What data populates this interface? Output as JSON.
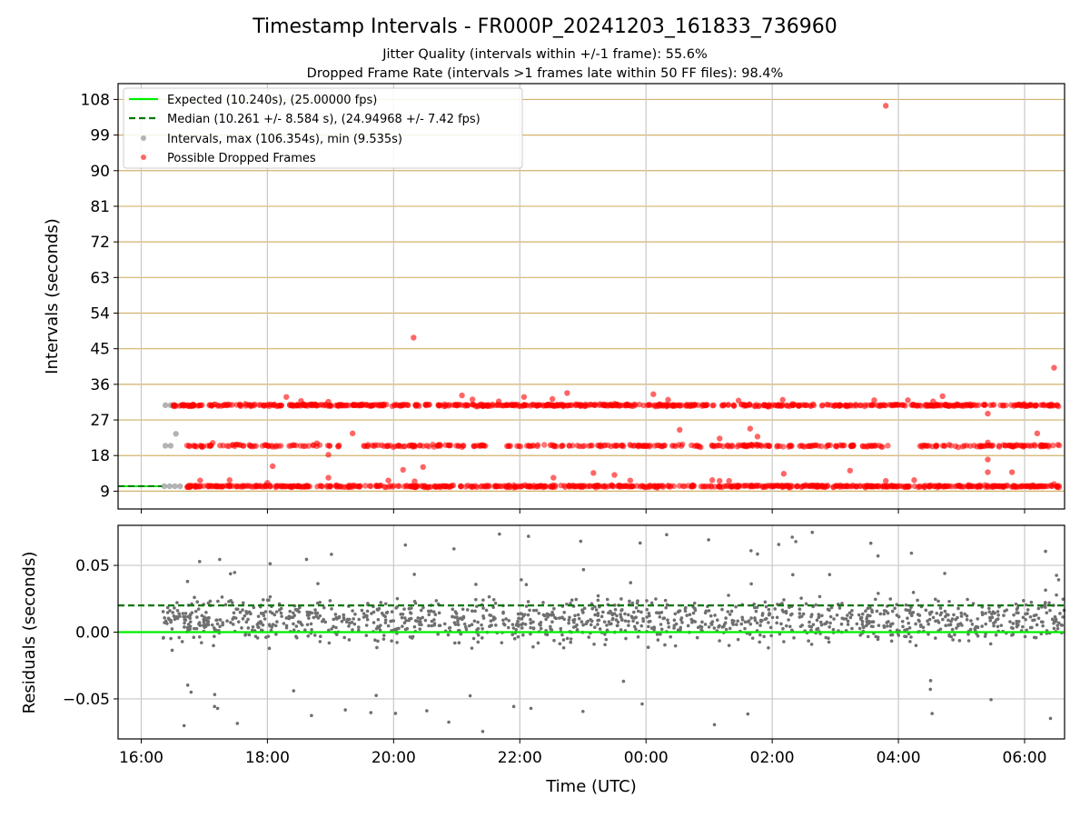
{
  "chart_data": [
    {
      "type": "scatter",
      "title": "Timestamp Intervals - FR000P_20241203_161833_736960",
      "subtitle": [
        "Jitter Quality (intervals within +/-1 frame): 55.6%",
        "Dropped Frame Rate (intervals >1 frames late within 50 FF files): 98.4%"
      ],
      "ylabel": "Intervals (seconds)",
      "ylim": [
        4.5,
        112
      ],
      "yticks": [
        "9",
        "18",
        "27",
        "36",
        "45",
        "54",
        "63",
        "72",
        "81",
        "90",
        "99",
        "108"
      ],
      "grid": true,
      "legend_position": "top-left",
      "legend": [
        "Expected (10.240s), (25.00000 fps)",
        "Median (10.261 +/- 8.584 s), (24.94968 +/- 7.42 fps)",
        "Intervals, max (106.354s), min (9.535s)",
        "Possible Dropped Frames"
      ],
      "expected_interval": 10.24,
      "median_interval": 10.261,
      "bands": [
        {
          "y": 10.24,
          "x_range": [
            "16:42",
            "06:33"
          ]
        },
        {
          "y": 20.48,
          "x_range": [
            "16:42",
            "06:33"
          ]
        },
        {
          "y": 30.72,
          "x_range": [
            "16:30",
            "06:33"
          ]
        }
      ],
      "normal_points": [
        {
          "x": "16:22",
          "y": 10.24
        },
        {
          "x": "16:23",
          "y": 20.48
        },
        {
          "x": "16:23",
          "y": 30.72
        },
        {
          "x": "16:27",
          "y": 10.24
        },
        {
          "x": "16:28",
          "y": 20.48
        },
        {
          "x": "16:28",
          "y": 30.72
        },
        {
          "x": "16:32",
          "y": 10.24
        },
        {
          "x": "16:32",
          "y": 30.72
        },
        {
          "x": "16:33",
          "y": 23.5
        },
        {
          "x": "16:37",
          "y": 10.24
        }
      ],
      "dropped_points": [
        {
          "x": "03:48",
          "y": 106.4
        },
        {
          "x": "20:19",
          "y": 47.8
        },
        {
          "x": "06:28",
          "y": 40.2
        },
        {
          "x": "18:18",
          "y": 32.8
        },
        {
          "x": "18:32",
          "y": 31.8
        },
        {
          "x": "18:58",
          "y": 31.6
        },
        {
          "x": "21:05",
          "y": 33.2
        },
        {
          "x": "21:15",
          "y": 32.2
        },
        {
          "x": "21:40",
          "y": 31.7
        },
        {
          "x": "22:04",
          "y": 32.8
        },
        {
          "x": "22:31",
          "y": 32.3
        },
        {
          "x": "22:45",
          "y": 33.8
        },
        {
          "x": "00:07",
          "y": 33.5
        },
        {
          "x": "00:21",
          "y": 32.1
        },
        {
          "x": "01:28",
          "y": 31.9
        },
        {
          "x": "02:10",
          "y": 32.1
        },
        {
          "x": "03:37",
          "y": 32.0
        },
        {
          "x": "04:09",
          "y": 32.0
        },
        {
          "x": "04:33",
          "y": 31.7
        },
        {
          "x": "04:42",
          "y": 33.0
        },
        {
          "x": "06:12",
          "y": 23.6
        },
        {
          "x": "17:08",
          "y": 21.2
        },
        {
          "x": "17:31",
          "y": 20.8
        },
        {
          "x": "18:05",
          "y": 15.3
        },
        {
          "x": "18:47",
          "y": 21.1
        },
        {
          "x": "18:58",
          "y": 18.2
        },
        {
          "x": "19:21",
          "y": 23.6
        },
        {
          "x": "00:32",
          "y": 24.5
        },
        {
          "x": "01:10",
          "y": 22.3
        },
        {
          "x": "01:39",
          "y": 24.8
        },
        {
          "x": "01:46",
          "y": 22.8
        },
        {
          "x": "05:25",
          "y": 28.6
        },
        {
          "x": "05:25",
          "y": 21.3
        },
        {
          "x": "05:25",
          "y": 17.0
        },
        {
          "x": "05:25",
          "y": 13.8
        },
        {
          "x": "05:45",
          "y": 20.6
        },
        {
          "x": "16:56",
          "y": 11.7
        },
        {
          "x": "17:24",
          "y": 11.8
        },
        {
          "x": "18:00",
          "y": 11.1
        },
        {
          "x": "18:58",
          "y": 12.4
        },
        {
          "x": "19:55",
          "y": 11.7
        },
        {
          "x": "20:09",
          "y": 14.4
        },
        {
          "x": "20:20",
          "y": 11.5
        },
        {
          "x": "20:28",
          "y": 15.1
        },
        {
          "x": "22:32",
          "y": 12.4
        },
        {
          "x": "23:10",
          "y": 13.6
        },
        {
          "x": "23:30",
          "y": 13.1
        },
        {
          "x": "23:45",
          "y": 11.7
        },
        {
          "x": "01:03",
          "y": 11.8
        },
        {
          "x": "01:10",
          "y": 11.6
        },
        {
          "x": "01:19",
          "y": 11.6
        },
        {
          "x": "01:42",
          "y": 10.2
        },
        {
          "x": "02:11",
          "y": 13.4
        },
        {
          "x": "03:14",
          "y": 14.2
        },
        {
          "x": "03:48",
          "y": 11.6
        },
        {
          "x": "04:15",
          "y": 11.8
        },
        {
          "x": "05:48",
          "y": 13.8
        },
        {
          "x": "06:28",
          "y": 10.8
        }
      ],
      "colors": {
        "expected": "#00ee00",
        "median": "#007700",
        "intervals": "#808080",
        "dropped": "#ff0000",
        "band_grid": "#d2b26a"
      }
    },
    {
      "type": "scatter",
      "xlabel": "Time (UTC)",
      "ylabel": "Residuals (seconds)",
      "ylim": [
        -0.08,
        0.08
      ],
      "yticks": [
        "−0.05",
        "0.00",
        "0.05"
      ],
      "ytick_values": [
        -0.05,
        0.0,
        0.05
      ],
      "xticks": [
        "16:00",
        "18:00",
        "20:00",
        "22:00",
        "00:00",
        "02:00",
        "04:00",
        "06:00"
      ],
      "xlim": [
        "15:38",
        "06:38"
      ],
      "grid": true,
      "expected_residual": 0.0,
      "median_residual": 0.02,
      "residual_cloud": {
        "x_range": [
          "16:20",
          "06:38"
        ],
        "typical_range": [
          -0.015,
          0.035
        ],
        "min": -0.077,
        "max": 0.078,
        "count": 1300
      },
      "colors": {
        "expected": "#00ee00",
        "median": "#007700",
        "points": "#6f6f6f"
      }
    }
  ]
}
